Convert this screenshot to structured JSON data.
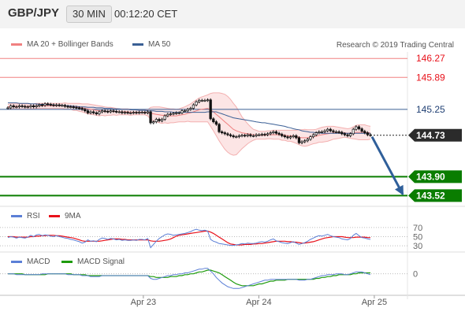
{
  "header": {
    "pair": "GBP/JPY",
    "timeframe": "30 MIN",
    "countdown": "00:12:20 CET"
  },
  "credit": "Research © 2019 Trading Central",
  "legend": {
    "main": [
      {
        "label": "MA 20 + Bollinger Bands",
        "color": "#f08080"
      },
      {
        "label": "MA 50",
        "color": "#3a5f95"
      }
    ],
    "rsi": [
      {
        "label": "RSI",
        "color": "#5b7fd6"
      },
      {
        "label": "9MA",
        "color": "#e8111a"
      }
    ],
    "macd": [
      {
        "label": "MACD",
        "color": "#5b7fd6"
      },
      {
        "label": "MACD Signal",
        "color": "#1e9b0c"
      }
    ]
  },
  "chart_data": {
    "type": "line",
    "y_scale": "price",
    "ylim": [
      143.4,
      146.4
    ],
    "xticks": [
      {
        "label": "Apr 23",
        "pos": 0.339
      },
      {
        "label": "Apr 24",
        "pos": 0.628
      },
      {
        "label": "Apr 25",
        "pos": 0.917
      }
    ],
    "levels": [
      {
        "value": 146.27,
        "label": "146.27",
        "kind": "resistance",
        "color": "#f08080"
      },
      {
        "value": 145.89,
        "label": "145.89",
        "kind": "resistance",
        "color": "#f08080"
      },
      {
        "value": 145.25,
        "label": "145.25",
        "kind": "pivot",
        "color": "#3a5f95"
      },
      {
        "value": 144.73,
        "label": "144.73",
        "kind": "last",
        "color": "#222222"
      },
      {
        "value": 143.9,
        "label": "143.90",
        "kind": "support",
        "color": "#0a7d00"
      },
      {
        "value": 143.52,
        "label": "143.52",
        "kind": "support",
        "color": "#0a7d00"
      }
    ],
    "forecast_arrow": {
      "from": 144.7,
      "to": 143.55,
      "color": "#2f5f9a"
    },
    "price_series": [
      145.28,
      145.32,
      145.3,
      145.3,
      145.32,
      145.31,
      145.3,
      145.3,
      145.32,
      145.3,
      145.32,
      145.34,
      145.33,
      145.36,
      145.35,
      145.34,
      145.33,
      145.34,
      145.33,
      145.33,
      145.31,
      145.3,
      145.3,
      145.29,
      145.28,
      145.27,
      145.25,
      145.22,
      145.18,
      145.2,
      145.18,
      145.16,
      145.2,
      145.22,
      145.21,
      145.2,
      145.22,
      145.21,
      145.2,
      145.2,
      145.18,
      145.19,
      145.18,
      145.18,
      145.19,
      145.18,
      145.19,
      145.19,
      145.18,
      145.2,
      144.98,
      145.0,
      145.05,
      145.02,
      145.05,
      145.12,
      145.15,
      145.16,
      145.17,
      145.18,
      145.18,
      145.22,
      145.22,
      145.25,
      145.27,
      145.34,
      145.4,
      145.43,
      145.43,
      145.43,
      145.44,
      145.06,
      145.0,
      144.95,
      144.8,
      144.78,
      144.76,
      144.74,
      144.72,
      144.7,
      144.7,
      144.72,
      144.73,
      144.72,
      144.74,
      144.72,
      144.72,
      144.74,
      144.74,
      144.75,
      144.74,
      144.76,
      144.78,
      144.8,
      144.77,
      144.75,
      144.72,
      144.7,
      144.68,
      144.7,
      144.72,
      144.68,
      144.58,
      144.6,
      144.62,
      144.65,
      144.7,
      144.74,
      144.78,
      144.8,
      144.8,
      144.82,
      144.85,
      144.82,
      144.8,
      144.8,
      144.79,
      144.76,
      144.74,
      144.72,
      144.76,
      144.85,
      144.9,
      144.86,
      144.81,
      144.78,
      144.74,
      144.73
    ],
    "ma20": [
      145.3,
      145.31,
      145.31,
      145.31,
      145.31,
      145.31,
      145.31,
      145.31,
      145.31,
      145.31,
      145.32,
      145.32,
      145.32,
      145.32,
      145.32,
      145.32,
      145.32,
      145.32,
      145.32,
      145.32,
      145.32,
      145.31,
      145.31,
      145.3,
      145.3,
      145.29,
      145.28,
      145.27,
      145.26,
      145.25,
      145.24,
      145.23,
      145.22,
      145.22,
      145.21,
      145.21,
      145.21,
      145.21,
      145.2,
      145.2,
      145.2,
      145.2,
      145.2,
      145.19,
      145.19,
      145.19,
      145.19,
      145.19,
      145.19,
      145.18,
      145.17,
      145.16,
      145.15,
      145.14,
      145.13,
      145.13,
      145.12,
      145.12,
      145.12,
      145.12,
      145.13,
      145.14,
      145.15,
      145.17,
      145.18,
      145.2,
      145.22,
      145.24,
      145.25,
      145.26,
      145.27,
      145.24,
      145.2,
      145.15,
      145.1,
      145.05,
      145.0,
      144.95,
      144.9,
      144.85,
      144.82,
      144.8,
      144.78,
      144.77,
      144.76,
      144.75,
      144.74,
      144.74,
      144.73,
      144.73,
      144.73,
      144.74,
      144.74,
      144.74,
      144.74,
      144.74,
      144.73,
      144.73,
      144.72,
      144.72,
      144.71,
      144.7,
      144.69,
      144.68,
      144.68,
      144.68,
      144.69,
      144.7,
      144.71,
      144.73,
      144.74,
      144.75,
      144.76,
      144.77,
      144.78,
      144.78,
      144.78,
      144.78,
      144.78,
      144.77,
      144.77,
      144.78,
      144.79,
      144.79,
      144.79,
      144.79,
      144.78,
      144.78
    ],
    "bb_width": [
      0.05,
      0.05,
      0.05,
      0.05,
      0.05,
      0.05,
      0.05,
      0.05,
      0.05,
      0.05,
      0.05,
      0.05,
      0.05,
      0.05,
      0.05,
      0.05,
      0.05,
      0.05,
      0.05,
      0.05,
      0.06,
      0.06,
      0.06,
      0.07,
      0.07,
      0.08,
      0.08,
      0.09,
      0.1,
      0.1,
      0.1,
      0.1,
      0.1,
      0.09,
      0.09,
      0.08,
      0.08,
      0.07,
      0.07,
      0.06,
      0.06,
      0.06,
      0.06,
      0.06,
      0.05,
      0.05,
      0.05,
      0.05,
      0.05,
      0.06,
      0.12,
      0.14,
      0.15,
      0.16,
      0.16,
      0.15,
      0.15,
      0.14,
      0.14,
      0.13,
      0.13,
      0.14,
      0.15,
      0.16,
      0.18,
      0.2,
      0.22,
      0.24,
      0.25,
      0.26,
      0.27,
      0.33,
      0.38,
      0.43,
      0.48,
      0.52,
      0.55,
      0.56,
      0.55,
      0.52,
      0.48,
      0.4,
      0.32,
      0.26,
      0.2,
      0.15,
      0.11,
      0.09,
      0.08,
      0.08,
      0.08,
      0.08,
      0.08,
      0.09,
      0.09,
      0.09,
      0.1,
      0.1,
      0.11,
      0.11,
      0.12,
      0.13,
      0.15,
      0.16,
      0.17,
      0.16,
      0.15,
      0.14,
      0.14,
      0.14,
      0.15,
      0.15,
      0.15,
      0.14,
      0.13,
      0.12,
      0.11,
      0.1,
      0.09,
      0.09,
      0.1,
      0.12,
      0.14,
      0.15,
      0.15,
      0.15,
      0.14,
      0.13
    ],
    "ma50": [
      145.38,
      145.38,
      145.38,
      145.38,
      145.37,
      145.37,
      145.37,
      145.37,
      145.36,
      145.36,
      145.36,
      145.35,
      145.35,
      145.35,
      145.34,
      145.34,
      145.34,
      145.33,
      145.33,
      145.33,
      145.32,
      145.32,
      145.32,
      145.31,
      145.31,
      145.3,
      145.3,
      145.3,
      145.29,
      145.29,
      145.29,
      145.28,
      145.28,
      145.28,
      145.27,
      145.27,
      145.27,
      145.26,
      145.26,
      145.26,
      145.25,
      145.25,
      145.25,
      145.24,
      145.24,
      145.24,
      145.23,
      145.23,
      145.23,
      145.22,
      145.22,
      145.22,
      145.21,
      145.21,
      145.21,
      145.2,
      145.2,
      145.2,
      145.19,
      145.19,
      145.19,
      145.19,
      145.19,
      145.19,
      145.19,
      145.19,
      145.19,
      145.19,
      145.19,
      145.19,
      145.2,
      145.2,
      145.2,
      145.2,
      145.18,
      145.16,
      145.14,
      145.12,
      145.1,
      145.08,
      145.07,
      145.06,
      145.05,
      145.04,
      145.03,
      145.02,
      145.01,
      145.0,
      144.99,
      144.98,
      144.98,
      144.97,
      144.96,
      144.95,
      144.94,
      144.93,
      144.92,
      144.91,
      144.89,
      144.88,
      144.86,
      144.85,
      144.84,
      144.82,
      144.81,
      144.8,
      144.79,
      144.79,
      144.78,
      144.78,
      144.77,
      144.77,
      144.77,
      144.77,
      144.77,
      144.77,
      144.77,
      144.77,
      144.77,
      144.77,
      144.77,
      144.77,
      144.77,
      144.77,
      144.77,
      144.77,
      144.77,
      144.77
    ],
    "rsi": {
      "ylim": [
        20,
        80
      ],
      "levels": [
        {
          "value": 70,
          "label": "70"
        },
        {
          "value": 50,
          "label": "50"
        },
        {
          "value": 30,
          "label": "30"
        }
      ],
      "rsi": [
        48,
        50,
        49,
        47,
        49,
        48,
        47,
        49,
        53,
        50,
        54,
        55,
        52,
        54,
        53,
        51,
        50,
        52,
        50,
        49,
        47,
        46,
        44,
        43,
        41,
        39,
        36,
        38,
        43,
        40,
        41,
        39,
        44,
        47,
        46,
        44,
        46,
        45,
        43,
        44,
        42,
        43,
        42,
        42,
        43,
        42,
        44,
        44,
        43,
        46,
        26,
        33,
        40,
        46,
        50,
        54,
        56,
        55,
        53,
        54,
        55,
        56,
        57,
        59,
        61,
        64,
        66,
        64,
        63,
        64,
        62,
        44,
        40,
        38,
        35,
        34,
        33,
        32,
        31,
        31,
        32,
        33,
        35,
        34,
        36,
        35,
        35,
        36,
        38,
        39,
        38,
        40,
        43,
        45,
        41,
        39,
        37,
        36,
        35,
        37,
        39,
        36,
        33,
        35,
        37,
        40,
        44,
        47,
        50,
        52,
        51,
        53,
        55,
        52,
        50,
        49,
        48,
        45,
        44,
        43,
        46,
        53,
        57,
        52,
        48,
        47,
        45,
        44
      ],
      "ma9": [
        50,
        50,
        50,
        49,
        49,
        49,
        49,
        49,
        50,
        50,
        51,
        51,
        52,
        52,
        53,
        53,
        53,
        52,
        52,
        51,
        50,
        49,
        48,
        47,
        45,
        43,
        41,
        40,
        40,
        40,
        40,
        40,
        40,
        41,
        42,
        43,
        44,
        45,
        45,
        45,
        44,
        44,
        43,
        43,
        43,
        43,
        43,
        43,
        43,
        43,
        41,
        40,
        40,
        40,
        41,
        42,
        43,
        45,
        48,
        51,
        53,
        54,
        55,
        56,
        57,
        58,
        59,
        60,
        61,
        62,
        62,
        60,
        57,
        53,
        49,
        45,
        41,
        37,
        34,
        33,
        32,
        32,
        32,
        33,
        33,
        33,
        34,
        34,
        35,
        35,
        36,
        37,
        38,
        39,
        40,
        40,
        40,
        40,
        39,
        39,
        38,
        38,
        37,
        36,
        36,
        37,
        38,
        39,
        41,
        43,
        45,
        47,
        48,
        49,
        50,
        50,
        50,
        50,
        49,
        48,
        48,
        48,
        49,
        49,
        49,
        49,
        48,
        48
      ]
    },
    "macd": {
      "ylim": [
        -0.2,
        0.1
      ],
      "levels": [
        {
          "value": 0,
          "label": "0"
        }
      ],
      "macd": [
        0.0,
        0.0,
        0.0,
        -0.01,
        -0.01,
        -0.01,
        -0.01,
        -0.01,
        -0.01,
        -0.01,
        -0.01,
        -0.01,
        0.0,
        0.0,
        0.0,
        0.0,
        0.0,
        0.0,
        0.0,
        0.0,
        0.0,
        -0.01,
        -0.01,
        -0.01,
        -0.01,
        -0.01,
        -0.02,
        -0.02,
        -0.02,
        -0.03,
        -0.03,
        -0.03,
        -0.03,
        -0.02,
        -0.02,
        -0.02,
        -0.02,
        -0.02,
        -0.02,
        -0.02,
        -0.02,
        -0.02,
        -0.02,
        -0.02,
        -0.02,
        -0.02,
        -0.02,
        -0.02,
        -0.02,
        -0.02,
        -0.05,
        -0.06,
        -0.06,
        -0.05,
        -0.04,
        -0.03,
        -0.02,
        -0.02,
        -0.01,
        -0.01,
        0.0,
        0.0,
        0.01,
        0.01,
        0.02,
        0.03,
        0.04,
        0.05,
        0.05,
        0.06,
        0.06,
        0.03,
        0.0,
        -0.04,
        -0.07,
        -0.1,
        -0.12,
        -0.14,
        -0.15,
        -0.16,
        -0.16,
        -0.16,
        -0.15,
        -0.14,
        -0.13,
        -0.12,
        -0.11,
        -0.1,
        -0.09,
        -0.08,
        -0.07,
        -0.07,
        -0.06,
        -0.06,
        -0.06,
        -0.06,
        -0.06,
        -0.06,
        -0.06,
        -0.06,
        -0.06,
        -0.06,
        -0.07,
        -0.07,
        -0.07,
        -0.06,
        -0.06,
        -0.05,
        -0.04,
        -0.03,
        -0.02,
        -0.02,
        -0.01,
        -0.01,
        -0.01,
        0.0,
        0.0,
        0.0,
        -0.01,
        -0.01,
        0.0,
        0.01,
        0.02,
        0.02,
        0.02,
        0.01,
        0.0,
        -0.01
      ],
      "signal": [
        0.0,
        0.0,
        0.0,
        0.0,
        0.0,
        0.0,
        -0.01,
        -0.01,
        -0.01,
        -0.01,
        -0.01,
        -0.01,
        -0.01,
        -0.01,
        0.0,
        0.0,
        0.0,
        0.0,
        0.0,
        0.0,
        0.0,
        0.0,
        0.0,
        -0.01,
        -0.01,
        -0.01,
        -0.01,
        -0.01,
        -0.02,
        -0.02,
        -0.02,
        -0.02,
        -0.02,
        -0.02,
        -0.02,
        -0.02,
        -0.02,
        -0.02,
        -0.02,
        -0.02,
        -0.02,
        -0.02,
        -0.02,
        -0.02,
        -0.02,
        -0.02,
        -0.02,
        -0.02,
        -0.02,
        -0.02,
        -0.03,
        -0.03,
        -0.04,
        -0.04,
        -0.04,
        -0.04,
        -0.04,
        -0.03,
        -0.03,
        -0.03,
        -0.02,
        -0.02,
        -0.01,
        -0.01,
        0.0,
        0.0,
        0.01,
        0.02,
        0.02,
        0.03,
        0.04,
        0.04,
        0.03,
        0.02,
        0.01,
        -0.01,
        -0.03,
        -0.05,
        -0.07,
        -0.09,
        -0.11,
        -0.12,
        -0.13,
        -0.13,
        -0.13,
        -0.13,
        -0.13,
        -0.12,
        -0.11,
        -0.11,
        -0.1,
        -0.09,
        -0.08,
        -0.08,
        -0.07,
        -0.07,
        -0.07,
        -0.07,
        -0.06,
        -0.06,
        -0.06,
        -0.06,
        -0.06,
        -0.06,
        -0.06,
        -0.06,
        -0.06,
        -0.06,
        -0.05,
        -0.05,
        -0.04,
        -0.04,
        -0.03,
        -0.03,
        -0.02,
        -0.02,
        -0.01,
        -0.01,
        -0.01,
        -0.01,
        -0.01,
        0.0,
        0.0,
        0.01,
        0.01,
        0.01,
        0.01,
        0.01
      ]
    }
  }
}
